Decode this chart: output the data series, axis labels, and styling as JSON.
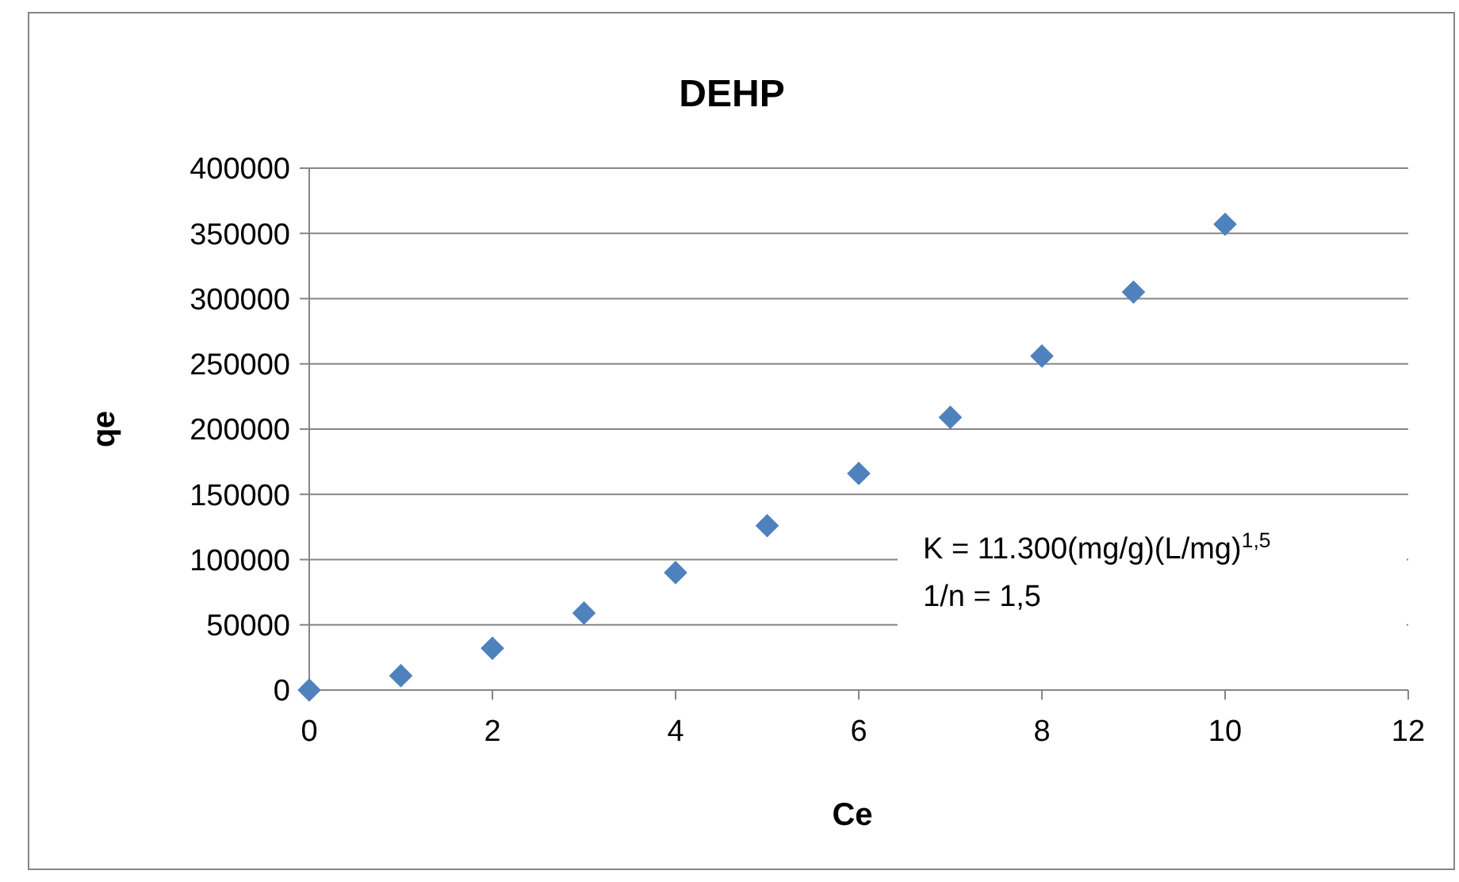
{
  "chart_data": {
    "type": "scatter",
    "title": "DEHP",
    "xlabel": "Ce",
    "ylabel": "qe",
    "x": [
      0,
      1,
      2,
      3,
      4,
      5,
      6,
      7,
      8,
      9,
      10
    ],
    "series": [
      {
        "color": "#4f81bd",
        "values": [
          0,
          11000,
          32000,
          59000,
          90000,
          126000,
          166000,
          209000,
          256000,
          305000,
          357000
        ]
      }
    ],
    "xlim": [
      0,
      12
    ],
    "xticks": [
      0,
      2,
      4,
      6,
      8,
      10,
      12
    ],
    "ylim": [
      0,
      400000
    ],
    "yticks": [
      0,
      50000,
      100000,
      150000,
      200000,
      250000,
      300000,
      350000,
      400000
    ],
    "grid": "y",
    "marker": "diamond",
    "annotations": [
      "K = 11.300(mg/g)(L/mg)$^{1,5}$",
      "1/n = 1,5"
    ]
  }
}
